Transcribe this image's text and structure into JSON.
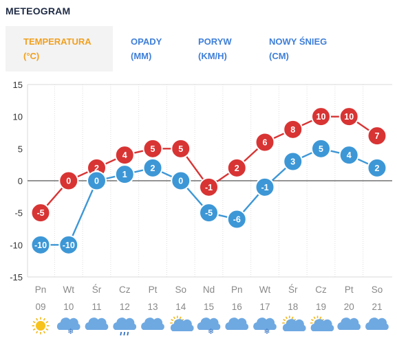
{
  "header": {
    "title": "METEOGRAM"
  },
  "tabs": [
    {
      "line1": "TEMPERATURA",
      "line2": "(°C)",
      "active": true
    },
    {
      "line1": "OPADY",
      "line2": "(MM)",
      "active": false
    },
    {
      "line1": "PORYW",
      "line2": "(KM/H)",
      "active": false
    },
    {
      "line1": "NOWY ŚNIEG",
      "line2": "(CM)",
      "active": false
    }
  ],
  "colors": {
    "temperature": "#d83434",
    "feels_like": "#3d97d6",
    "active_tab": "#f0a020",
    "tab": "#3f7fd8"
  },
  "chart_data": {
    "type": "line",
    "ylim": [
      -15,
      15
    ],
    "yticks": [
      "15",
      "10",
      "5",
      "0",
      "-5",
      "-10",
      "-15"
    ],
    "yticks_values": [
      15,
      10,
      5,
      0,
      -5,
      -10,
      -15
    ],
    "days": [
      "Pn",
      "Wt",
      "Śr",
      "Cz",
      "Pt",
      "So",
      "Nd",
      "Pn",
      "Wt",
      "Śr",
      "Cz",
      "Pt",
      "So"
    ],
    "dates": [
      "09",
      "10",
      "11",
      "12",
      "13",
      "14",
      "15",
      "16",
      "17",
      "18",
      "19",
      "20",
      "21"
    ],
    "icons": [
      "sun-icon",
      "cloud-snow-icon",
      "cloud-icon",
      "cloud-rain-icon",
      "cloud-icon",
      "sun-cloud-icon",
      "cloud-snow-icon",
      "cloud-icon",
      "cloud-snow-icon",
      "sun-cloud-icon",
      "sun-cloud-icon",
      "cloud-icon",
      "cloud-icon"
    ],
    "series": [
      {
        "values": [
          -5,
          0,
          2,
          4,
          5,
          5,
          -1,
          2,
          6,
          8,
          10,
          10,
          7
        ]
      },
      {
        "values": [
          -10,
          -10,
          0,
          1,
          2,
          0,
          -5,
          -6,
          -1,
          3,
          5,
          4,
          2
        ]
      }
    ]
  }
}
